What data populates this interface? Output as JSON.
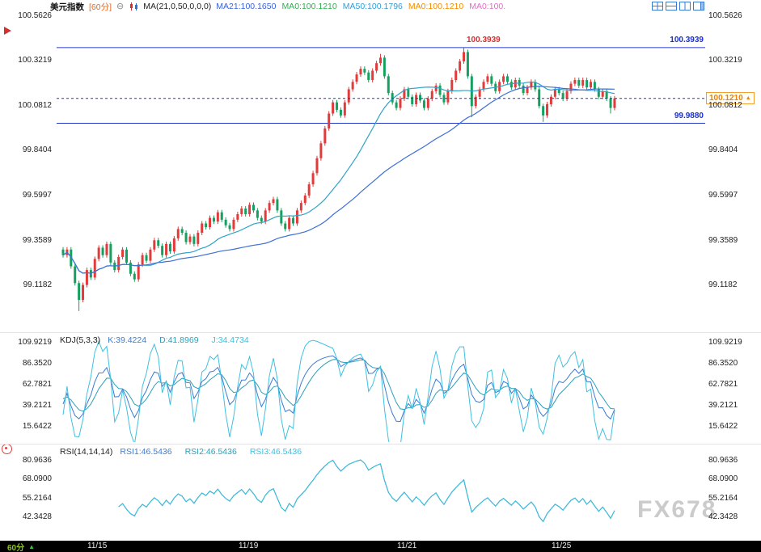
{
  "header": {
    "title": "美元指数",
    "interval": "[60分]",
    "ma_settings": "MA(21,0,50,0,0,0)",
    "ma_items": [
      {
        "label": "MA21:100.1650",
        "color": "#3a62d8"
      },
      {
        "label": "MA0:100.1210",
        "color": "#2fae4e"
      },
      {
        "label": "MA50:100.1796",
        "color": "#2f9fd8"
      },
      {
        "label": "MA0:100.1210",
        "color": "#f08c00"
      },
      {
        "label": "MA0:100.",
        "color": "#e86ac8"
      }
    ],
    "layout_icons": [
      "layout-grid-icon",
      "layout-rows-icon",
      "layout-columns-icon",
      "layout-main-right-icon"
    ],
    "accent_color": "#3b7bd0"
  },
  "watermark": "FX678",
  "footer": {
    "interval_badge": "60分",
    "badge_arrow": "▲",
    "badge_color": "#8fc31f"
  },
  "chart_data": [
    {
      "type": "candlestick",
      "symbol": "美元指数",
      "period": "60分",
      "y_ticks": [
        "100.5626",
        "100.3219",
        "100.0812",
        "99.8404",
        "99.5997",
        "99.3589",
        "99.1182"
      ],
      "ylim": [
        99.06,
        100.59
      ],
      "x_ticks": [
        "11/15",
        "11/19",
        "11/21",
        "11/25"
      ],
      "x_tick_indices": [
        9,
        47,
        87,
        126
      ],
      "up_color": "#e23b3b",
      "down_color": "#15a05f",
      "closes": [
        99.28,
        99.31,
        99.22,
        99.13,
        99.04,
        99.12,
        99.2,
        99.16,
        99.26,
        99.32,
        99.28,
        99.34,
        99.24,
        99.2,
        99.27,
        99.31,
        99.24,
        99.18,
        99.15,
        99.23,
        99.28,
        99.25,
        99.31,
        99.36,
        99.33,
        99.28,
        99.34,
        99.3,
        99.37,
        99.42,
        99.4,
        99.35,
        99.38,
        99.34,
        99.4,
        99.45,
        99.43,
        99.48,
        99.46,
        99.51,
        99.47,
        99.44,
        99.42,
        99.47,
        99.5,
        99.53,
        99.5,
        99.55,
        99.52,
        99.48,
        99.46,
        99.52,
        99.56,
        99.58,
        99.52,
        99.45,
        99.42,
        99.48,
        99.45,
        99.52,
        99.56,
        99.6,
        99.66,
        99.72,
        99.8,
        99.88,
        99.96,
        100.04,
        100.1,
        100.06,
        100.03,
        100.1,
        100.17,
        100.21,
        100.25,
        100.28,
        100.26,
        100.22,
        100.27,
        100.31,
        100.34,
        100.24,
        100.15,
        100.1,
        100.07,
        100.12,
        100.17,
        100.13,
        100.09,
        100.14,
        100.11,
        100.07,
        100.12,
        100.16,
        100.19,
        100.14,
        100.1,
        100.16,
        100.22,
        100.27,
        100.32,
        100.37,
        100.24,
        100.08,
        100.13,
        100.17,
        100.21,
        100.24,
        100.2,
        100.16,
        100.21,
        100.24,
        100.21,
        100.18,
        100.22,
        100.19,
        100.15,
        100.18,
        100.21,
        100.17,
        100.08,
        100.03,
        100.09,
        100.13,
        100.17,
        100.15,
        100.12,
        100.16,
        100.2,
        100.22,
        100.19,
        100.22,
        100.18,
        100.21,
        100.17,
        100.13,
        100.16,
        100.12,
        100.07,
        100.121
      ],
      "default_wick": 0.013,
      "wick_overrides": {
        "4": {
          "low": 98.98
        },
        "80": {
          "high": 100.36
        },
        "101": {
          "high": 100.3939
        },
        "103": {
          "low": 100.02
        },
        "121": {
          "low": 99.995
        },
        "138": {
          "low": 100.04
        }
      },
      "ma": [
        {
          "period": 21,
          "color": "#2fa3c8"
        },
        {
          "period": 50,
          "color": "#3d6fd6"
        }
      ],
      "levels": [
        {
          "value": 100.3939,
          "label": "100.3939",
          "line_color": "#2438c8",
          "left_label_color": "#d03030",
          "right_label_color": "#1a2fd0"
        },
        {
          "value": 99.988,
          "label": "99.9880",
          "line_color": "#2438c8",
          "right_label_color": "#1a2fd0"
        }
      ],
      "current_price": {
        "value": 100.121,
        "label": "100.1210",
        "color": "#e8820c",
        "line_style": "dashed",
        "line_color": "#2a3a9a"
      }
    },
    {
      "type": "line",
      "title": "KDJ(5,3,3)",
      "params": [
        5,
        3,
        3
      ],
      "labels": [
        {
          "text": "K:39.4224",
          "color": "#3a7bd5"
        },
        {
          "text": "D:41.8969",
          "color": "#2aa0b8"
        },
        {
          "text": "J:34.4734",
          "color": "#3ec1e0"
        }
      ],
      "y_ticks": [
        "109.9219",
        "86.3520",
        "62.7821",
        "39.2121",
        "15.6422"
      ]
    },
    {
      "type": "line",
      "title": "RSI(14,14,14)",
      "params": [
        14,
        14,
        14
      ],
      "labels": [
        {
          "text": "RSI1:46.5436",
          "color": "#3a7bd5"
        },
        {
          "text": "RSI2:46.5436",
          "color": "#2aa0b8"
        },
        {
          "text": "RSI3:46.5436",
          "color": "#3ec1e0"
        }
      ],
      "y_ticks": [
        "80.9636",
        "68.0900",
        "55.2164",
        "42.3428"
      ]
    }
  ]
}
